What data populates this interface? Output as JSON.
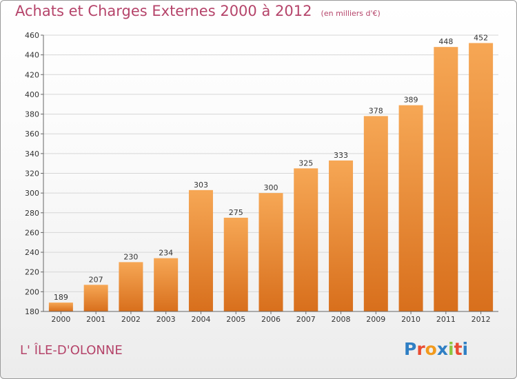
{
  "title": "Achats et Charges Externes 2000 à 2012",
  "subtitle": "(en milliers d'€)",
  "commune": "L' ÎLE-D'OLONNE",
  "logo": {
    "text": "Proxiti",
    "letter_colors": [
      "#2f7fc4",
      "#e84c33",
      "#f29a1d",
      "#2f7fc4",
      "#8dc63f",
      "#e84c33",
      "#2f7fc4"
    ]
  },
  "colors": {
    "bar_top": "#f6a755",
    "bar_bottom": "#d86f1c",
    "title": "#b5446a"
  },
  "chart_data": {
    "type": "bar",
    "categories": [
      "2000",
      "2001",
      "2002",
      "2003",
      "2004",
      "2005",
      "2006",
      "2007",
      "2008",
      "2009",
      "2010",
      "2011",
      "2012"
    ],
    "values": [
      189,
      207,
      230,
      234,
      303,
      275,
      300,
      325,
      333,
      378,
      389,
      448,
      452
    ],
    "title": "Achats et Charges Externes 2000 à 2012",
    "subtitle": "(en milliers d'€)",
    "ylim": [
      180,
      460
    ],
    "yticks": [
      180,
      200,
      220,
      240,
      260,
      280,
      300,
      320,
      340,
      360,
      380,
      400,
      420,
      440,
      460
    ],
    "grid": true,
    "data_labels": true
  }
}
